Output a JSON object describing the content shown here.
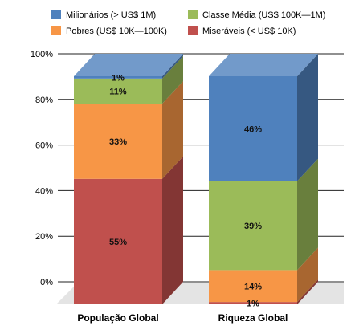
{
  "chart_data": {
    "type": "bar",
    "stacked": true,
    "three_d": true,
    "categories": [
      "População Global",
      "Riqueza Global"
    ],
    "series": [
      {
        "name": "Miseráveis (< US$ 10K)",
        "color": "#c0504d",
        "values": [
          55,
          1
        ],
        "labels": [
          "55%",
          "1%"
        ]
      },
      {
        "name": "Pobres (US$ 10K—100K)",
        "color": "#f79646",
        "values": [
          33,
          14
        ],
        "labels": [
          "33%",
          "14%"
        ]
      },
      {
        "name": "Classe Média (US$ 100K—1M)",
        "color": "#9bbb59",
        "values": [
          11,
          39
        ],
        "labels": [
          "11%",
          "39%"
        ]
      },
      {
        "name": "Milionários (> US$ 1M)",
        "color": "#4f81bd",
        "values": [
          1,
          46
        ],
        "labels": [
          "1%",
          "46%"
        ]
      }
    ],
    "legend_order": [
      3,
      2,
      1,
      0
    ],
    "ylim": [
      0,
      100
    ],
    "yticks": [
      0,
      20,
      40,
      60,
      80,
      100
    ],
    "ytick_labels": [
      "0%",
      "20%",
      "40%",
      "60%",
      "80%",
      "100%"
    ],
    "grid": true,
    "legend_position": "top"
  }
}
